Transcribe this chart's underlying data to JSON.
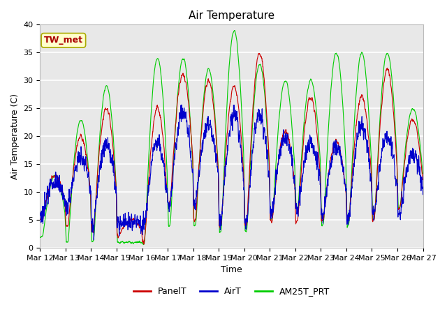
{
  "title": "Air Temperature",
  "ylabel": "Air Temperature (C)",
  "xlabel": "Time",
  "annotation": "TW_met",
  "annotation_color": "#aa0000",
  "annotation_bg": "#ffffcc",
  "annotation_border": "#aaaa00",
  "ylim": [
    0,
    40
  ],
  "plot_bg": "#e8e8e8",
  "grid_color": "white",
  "series": [
    "PanelT",
    "AirT",
    "AM25T_PRT"
  ],
  "colors": [
    "#cc0000",
    "#0000cc",
    "#00cc00"
  ],
  "x_tick_labels": [
    "Mar 12",
    "Mar 13",
    "Mar 14",
    "Mar 15",
    "Mar 16",
    "Mar 17",
    "Mar 18",
    "Mar 19",
    "Mar 20",
    "Mar 21",
    "Mar 22",
    "Mar 23",
    "Mar 24",
    "Mar 25",
    "Mar 26",
    "Mar 27"
  ],
  "n_days": 15,
  "pts_per_day": 144,
  "seed": 42,
  "day_peaks_panel": [
    13,
    20,
    25,
    5,
    25,
    31,
    30,
    29,
    35,
    21,
    27,
    19,
    27,
    32,
    23
  ],
  "day_troughs_panel": [
    5,
    4,
    3,
    2,
    1,
    8,
    5,
    4,
    4,
    5,
    5,
    5,
    5,
    5,
    7
  ],
  "day_peaks_air": [
    12,
    16,
    19,
    5,
    19,
    24,
    22,
    24,
    24,
    20,
    19,
    18,
    22,
    20,
    17
  ],
  "day_troughs_air": [
    6,
    7,
    4,
    4,
    4,
    8,
    8,
    5,
    5,
    6,
    7,
    6,
    5,
    6,
    6
  ],
  "day_peaks_green": [
    13,
    23,
    29,
    1,
    34,
    34,
    32,
    39,
    33,
    30,
    30,
    35,
    35,
    35,
    25
  ],
  "day_troughs_green": [
    2,
    1,
    1,
    1,
    1,
    4,
    4,
    3,
    3,
    5,
    7,
    4,
    4,
    5,
    7
  ],
  "figsize": [
    6.4,
    4.8
  ],
  "dpi": 100,
  "linewidth": 0.8,
  "title_fontsize": 11,
  "label_fontsize": 9,
  "tick_fontsize": 8,
  "legend_fontsize": 9
}
